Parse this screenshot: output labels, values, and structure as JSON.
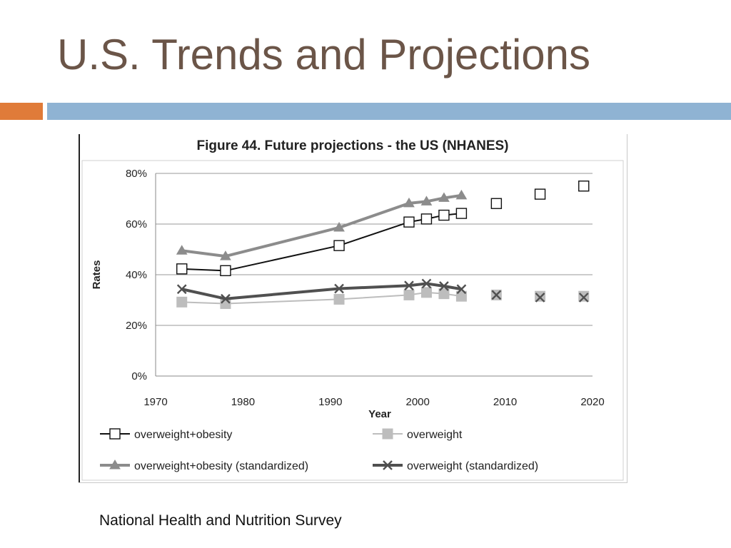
{
  "slide": {
    "title": "U.S. Trends and Projections",
    "caption": "National Health and Nutrition Survey",
    "colors": {
      "title": "#6b5548",
      "accent_orange": "#e07b39",
      "accent_blue": "#8fb3d3"
    }
  },
  "chart_data": {
    "type": "line",
    "title": "Figure 44.  Future projections - the US (NHANES)",
    "xlabel": "Year",
    "ylabel": "Rates",
    "xlim": [
      1970,
      2020
    ],
    "ylim": [
      0,
      80
    ],
    "x_ticks": [
      "1970",
      "1980",
      "1990",
      "2000",
      "2010",
      "2020"
    ],
    "y_ticks": [
      "0%",
      "20%",
      "40%",
      "60%",
      "80%"
    ],
    "grid": "horizontal",
    "legend_position": "bottom",
    "series": [
      {
        "name": "overweight+obesity",
        "color": "#111111",
        "marker": "square-open",
        "line": "thin",
        "observed": [
          [
            1973,
            42.3
          ],
          [
            1978,
            41.6
          ],
          [
            1991,
            51.5
          ],
          [
            1999,
            60.8
          ],
          [
            2001,
            62.0
          ],
          [
            2003,
            63.5
          ],
          [
            2005,
            64.2
          ]
        ],
        "projected": [
          [
            2009,
            68.1
          ],
          [
            2014,
            71.8
          ],
          [
            2019,
            75.0
          ]
        ]
      },
      {
        "name": "overweight",
        "color": "#bdbdbd",
        "marker": "square-filled",
        "line": "thin",
        "observed": [
          [
            1973,
            29.2
          ],
          [
            1978,
            28.6
          ],
          [
            1991,
            30.3
          ],
          [
            1999,
            32.0
          ],
          [
            2001,
            33.0
          ],
          [
            2003,
            32.5
          ],
          [
            2005,
            31.5
          ]
        ],
        "projected": [
          [
            2009,
            32.0
          ],
          [
            2014,
            31.5
          ],
          [
            2019,
            31.5
          ]
        ]
      },
      {
        "name": "overweight+obesity (standardized)",
        "color": "#8c8c8c",
        "marker": "triangle",
        "line": "thick",
        "observed": [
          [
            1973,
            49.5
          ],
          [
            1978,
            47.3
          ],
          [
            1991,
            58.6
          ],
          [
            1999,
            68.2
          ],
          [
            2001,
            68.9
          ],
          [
            2003,
            70.3
          ],
          [
            2005,
            71.3
          ]
        ],
        "projected": [
          [
            2009,
            68.0
          ],
          [
            2014,
            71.5
          ],
          [
            2019,
            74.5
          ]
        ]
      },
      {
        "name": "overweight (standardized)",
        "color": "#505050",
        "marker": "x",
        "line": "thick",
        "observed": [
          [
            1973,
            34.3
          ],
          [
            1978,
            30.5
          ],
          [
            1991,
            34.5
          ],
          [
            1999,
            35.7
          ],
          [
            2001,
            36.5
          ],
          [
            2003,
            35.5
          ],
          [
            2005,
            34.3
          ]
        ],
        "projected": [
          [
            2009,
            32.0
          ],
          [
            2014,
            31.0
          ],
          [
            2019,
            31.0
          ]
        ]
      }
    ]
  }
}
